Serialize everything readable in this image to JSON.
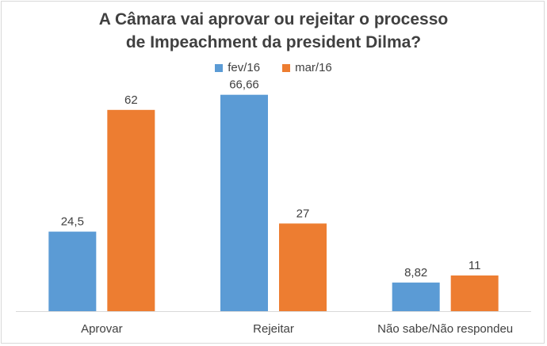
{
  "chart_data": {
    "type": "bar",
    "title_lines": [
      "A Câmara vai aprovar ou rejeitar o processo",
      "de Impeachment da president Dilma?"
    ],
    "categories": [
      "Aprovar",
      "Rejeitar",
      "Não sabe/Não respondeu"
    ],
    "series": [
      {
        "name": "fev/16",
        "color": "#5b9bd5",
        "values": [
          24.5,
          66.66,
          8.82
        ],
        "labels": [
          "24,5",
          "66,66",
          "8,82"
        ]
      },
      {
        "name": "mar/16",
        "color": "#ed7d31",
        "values": [
          62,
          27,
          11
        ],
        "labels": [
          "62",
          "27",
          "11"
        ]
      }
    ],
    "ylim": [
      0,
      70
    ],
    "legend_position": "top",
    "grid": false
  }
}
